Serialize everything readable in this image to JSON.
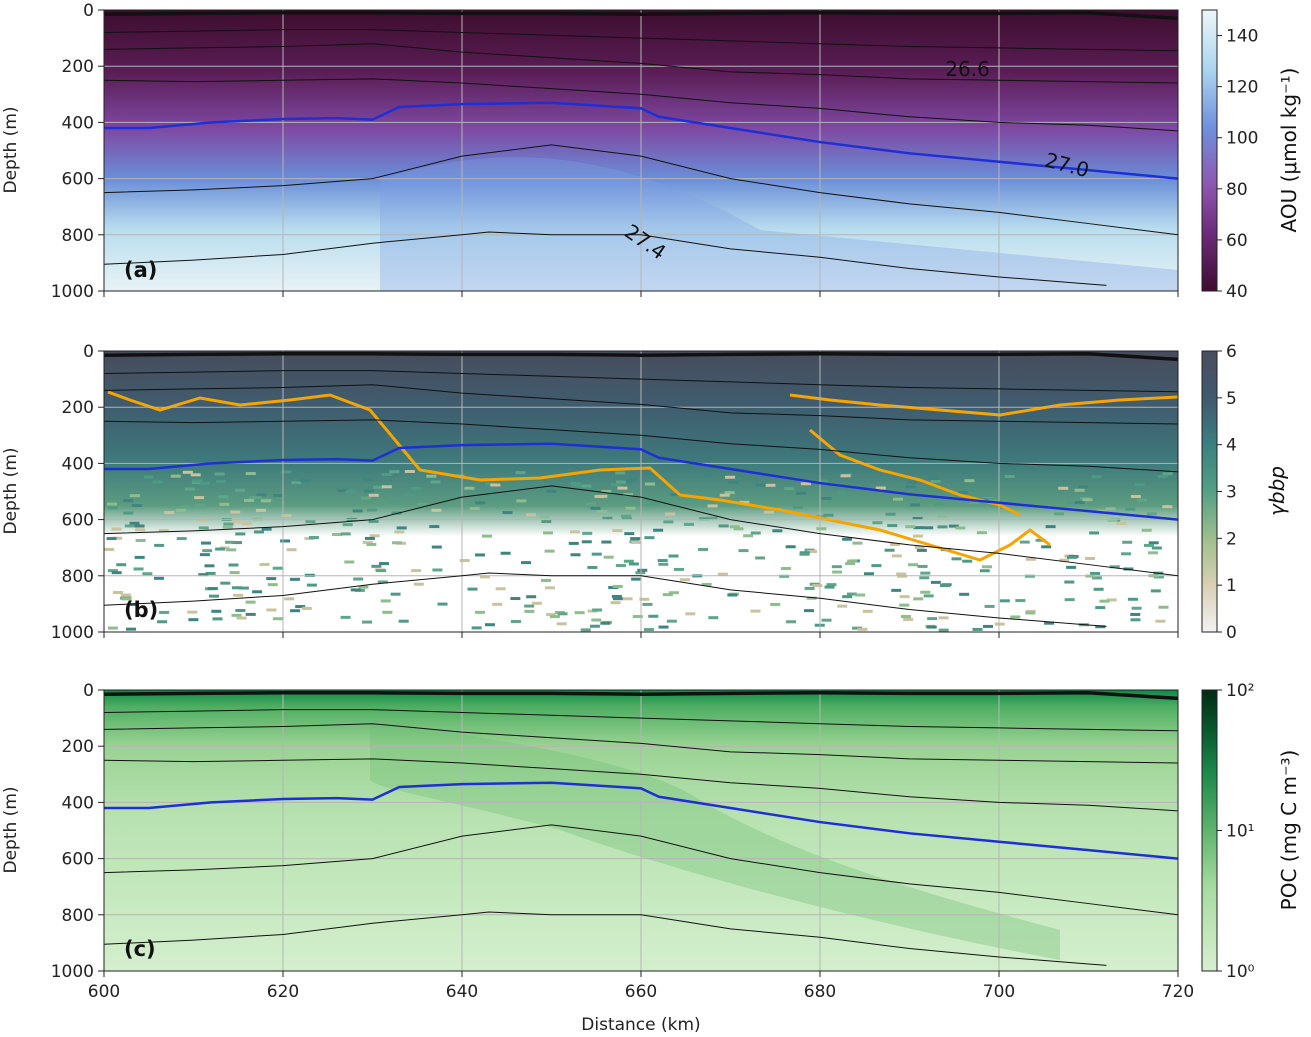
{
  "chart_data": [
    {
      "panel": "(a)",
      "type": "heatmap",
      "xlabel": "",
      "ylabel": "Depth (m)",
      "xlim": [
        600,
        720
      ],
      "ylim": [
        1000,
        0
      ],
      "y_ticks": [
        0,
        200,
        400,
        600,
        800,
        1000
      ],
      "grid": true,
      "colorbar": {
        "label": "AOU (μmol kg⁻¹)",
        "range": [
          40,
          150
        ],
        "ticks": [
          40,
          60,
          80,
          100,
          120,
          140
        ],
        "scale": "linear",
        "colors": [
          "#3d0d2e",
          "#6c2a78",
          "#8e58b0",
          "#6f8fdc",
          "#a8d3ee",
          "#eef6f8"
        ]
      },
      "contour_labels": [
        {
          "text": "26.6",
          "x": 694,
          "y": 235
        },
        {
          "text": "27.0",
          "x": 705,
          "y": 555
        },
        {
          "text": "27.4",
          "x": 658,
          "y": 800
        }
      ],
      "highlight_isopycnal": {
        "sigma": "27.0",
        "color": "#1f2fd6",
        "x": [
          600,
          605,
          612,
          620,
          626,
          630,
          633,
          640,
          650,
          660,
          662,
          670,
          680,
          690,
          700,
          710,
          720
        ],
        "depth": [
          420,
          420,
          400,
          388,
          385,
          390,
          345,
          335,
          330,
          350,
          380,
          420,
          470,
          510,
          540,
          570,
          600
        ]
      }
    },
    {
      "panel": "(b)",
      "type": "heatmap",
      "xlabel": "",
      "ylabel": "Depth (m)",
      "xlim": [
        600,
        720
      ],
      "ylim": [
        1000,
        0
      ],
      "y_ticks": [
        0,
        200,
        400,
        600,
        800,
        1000
      ],
      "grid": true,
      "colorbar": {
        "label": "γbbp",
        "range": [
          0,
          6
        ],
        "ticks": [
          0,
          1,
          2,
          3,
          4,
          5,
          6
        ],
        "scale": "linear",
        "colors": [
          "#f2f2f2",
          "#d9cfb3",
          "#9fbf8e",
          "#54a084",
          "#3b7f80",
          "#3f5a6e",
          "#4a4e5e"
        ]
      },
      "orange_contour_color": "#f5a400"
    },
    {
      "panel": "(c)",
      "type": "heatmap",
      "xlabel": "Distance (km)",
      "ylabel": "Depth (m)",
      "xlim": [
        600,
        720
      ],
      "ylim": [
        1000,
        0
      ],
      "x_ticks": [
        600,
        620,
        640,
        660,
        680,
        700,
        720
      ],
      "y_ticks": [
        0,
        200,
        400,
        600,
        800,
        1000
      ],
      "grid": true,
      "colorbar": {
        "label": "POC (mg C m⁻³)",
        "range": [
          1,
          100
        ],
        "ticks": [
          "10⁰",
          "10¹",
          "10²"
        ],
        "scale": "log",
        "colors": [
          "#d7f0cf",
          "#a6dba0",
          "#5fb36c",
          "#1f8a4c",
          "#0b5a2e",
          "#002b14"
        ]
      }
    }
  ],
  "isopycnals": [
    {
      "x": [
        600,
        610,
        620,
        630,
        640,
        650,
        660,
        670,
        680,
        690,
        700,
        710,
        720
      ],
      "depth": [
        15,
        12,
        10,
        10,
        12,
        12,
        15,
        12,
        10,
        12,
        12,
        10,
        30
      ],
      "bold": true
    },
    {
      "x": [
        600,
        610,
        620,
        630,
        640,
        650,
        660,
        670,
        680,
        690,
        700,
        710,
        720
      ],
      "depth": [
        80,
        75,
        70,
        70,
        80,
        90,
        100,
        110,
        120,
        130,
        135,
        140,
        145
      ]
    },
    {
      "x": [
        600,
        610,
        620,
        630,
        640,
        650,
        660,
        670,
        680,
        690,
        700,
        710,
        720
      ],
      "depth": [
        140,
        135,
        130,
        120,
        150,
        170,
        190,
        220,
        230,
        245,
        250,
        255,
        260
      ]
    },
    {
      "x": [
        600,
        610,
        620,
        630,
        640,
        650,
        660,
        670,
        680,
        690,
        700,
        710,
        720
      ],
      "depth": [
        250,
        255,
        250,
        245,
        260,
        280,
        300,
        330,
        350,
        380,
        400,
        410,
        430
      ]
    },
    {
      "x": [
        600,
        610,
        620,
        630,
        640,
        650,
        660,
        670,
        680,
        690,
        700,
        710,
        720
      ],
      "depth": [
        650,
        640,
        625,
        600,
        520,
        480,
        520,
        600,
        650,
        690,
        720,
        760,
        800
      ]
    },
    {
      "x": [
        600,
        610,
        620,
        630,
        640,
        643,
        650,
        660,
        670,
        680,
        690,
        700,
        710,
        712
      ],
      "depth": [
        905,
        890,
        870,
        830,
        800,
        790,
        800,
        800,
        850,
        880,
        920,
        950,
        975,
        980
      ]
    }
  ]
}
